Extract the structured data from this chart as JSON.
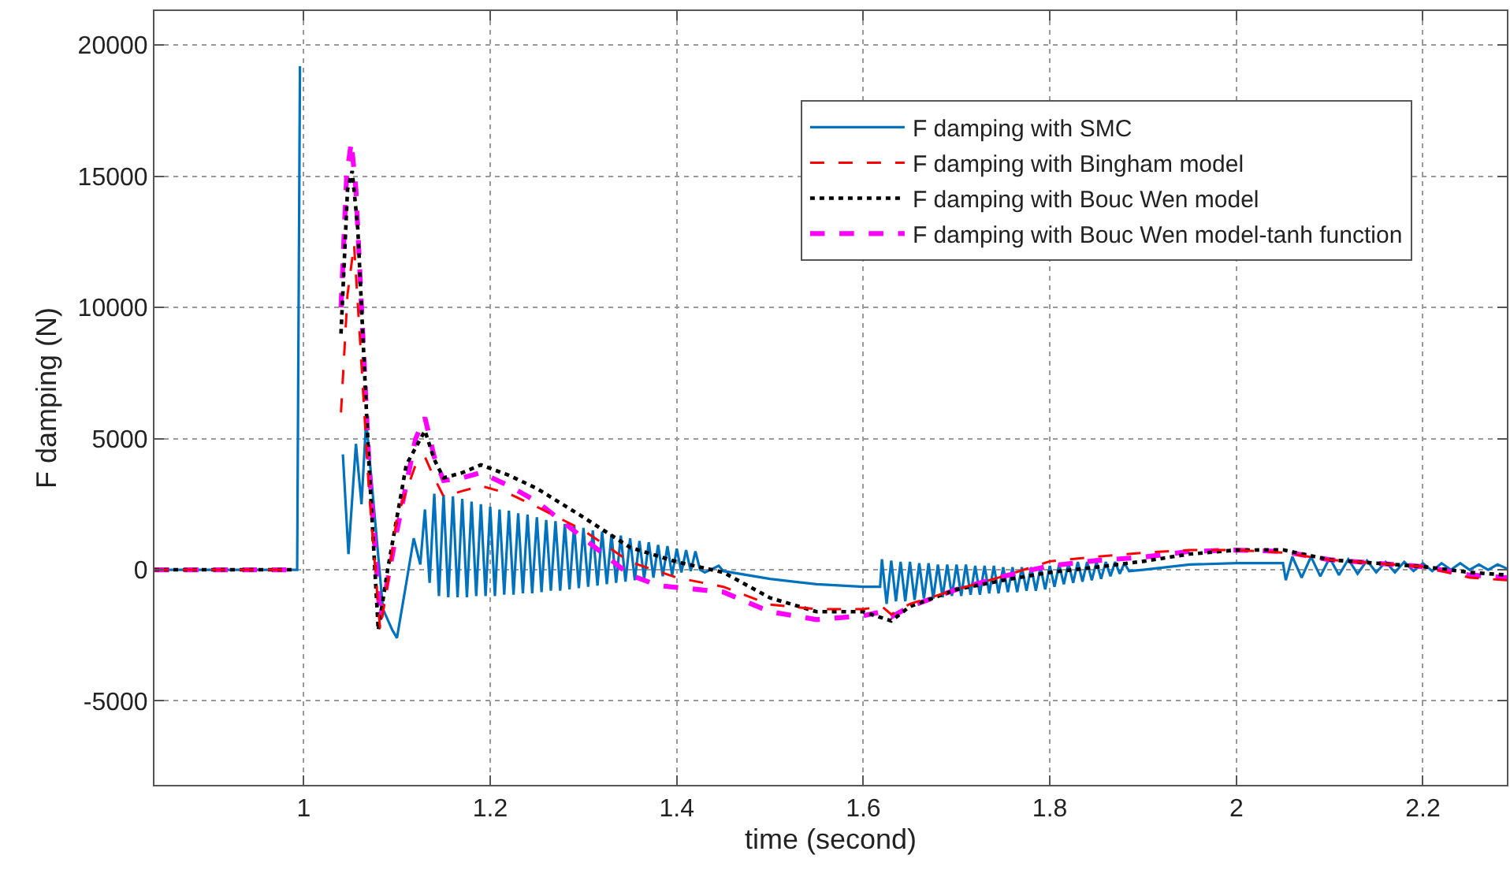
{
  "chart_data": {
    "type": "line",
    "xlabel": "time (second)",
    "ylabel": "F damping (N)",
    "xlim": [
      0.84,
      2.29
    ],
    "xticks": [
      1,
      1.2,
      1.4,
      1.6,
      1.8,
      2,
      2.2
    ],
    "ylim": [
      -8200,
      21300
    ],
    "yticks": [
      -5000,
      0,
      5000,
      10000,
      15000,
      20000
    ],
    "grid": true,
    "legend": "top right",
    "marker": "none",
    "series": [
      {
        "name": "F damping with SMC",
        "color": "#0072bd",
        "line_style": "solid",
        "x": [
          0.84,
          0.99,
          0.993,
          0.996,
          0.999,
          1.003,
          1.008,
          1.013,
          1.018,
          1.027,
          1.036,
          1.042,
          1.048,
          1.056,
          1.062,
          1.067,
          1.085,
          1.095,
          1.1,
          1.11,
          1.118,
          1.125,
          1.13,
          1.135,
          1.14,
          1.145,
          1.15,
          1.155,
          1.16,
          1.165,
          1.17,
          1.175,
          1.18,
          1.185,
          1.19,
          1.195,
          1.2,
          1.205,
          1.21,
          1.215,
          1.22,
          1.225,
          1.23,
          1.235,
          1.24,
          1.245,
          1.25,
          1.255,
          1.26,
          1.265,
          1.27,
          1.275,
          1.28,
          1.285,
          1.29,
          1.295,
          1.3,
          1.305,
          1.31,
          1.315,
          1.32,
          1.325,
          1.33,
          1.335,
          1.34,
          1.345,
          1.35,
          1.355,
          1.36,
          1.365,
          1.37,
          1.375,
          1.38,
          1.385,
          1.39,
          1.395,
          1.4,
          1.405,
          1.41,
          1.415,
          1.42,
          1.425,
          1.43,
          1.445,
          1.45,
          1.5,
          1.55,
          1.6,
          1.618,
          1.62,
          1.625,
          1.63,
          1.635,
          1.64,
          1.645,
          1.65,
          1.655,
          1.66,
          1.665,
          1.67,
          1.675,
          1.68,
          1.685,
          1.69,
          1.695,
          1.7,
          1.705,
          1.71,
          1.715,
          1.72,
          1.725,
          1.73,
          1.735,
          1.74,
          1.745,
          1.75,
          1.755,
          1.76,
          1.765,
          1.77,
          1.775,
          1.78,
          1.785,
          1.79,
          1.795,
          1.8,
          1.805,
          1.81,
          1.815,
          1.82,
          1.825,
          1.83,
          1.835,
          1.84,
          1.845,
          1.85,
          1.855,
          1.86,
          1.865,
          1.87,
          1.875,
          1.88,
          1.885,
          1.9,
          1.95,
          2.0,
          2.05,
          2.053,
          2.06,
          2.07,
          2.08,
          2.09,
          2.1,
          2.11,
          2.12,
          2.13,
          2.14,
          2.15,
          2.16,
          2.17,
          2.18,
          2.19,
          2.2,
          2.21,
          2.22,
          2.23,
          2.24,
          2.25,
          2.26,
          2.27,
          2.28,
          2.29
        ],
        "values": [
          0,
          0,
          0,
          19200,
          null,
          null,
          null,
          null,
          null,
          null,
          null,
          4400,
          600,
          4800,
          2500,
          5700,
          -1500,
          -2300,
          -2600,
          -500,
          1200,
          200,
          2300,
          -500,
          2900,
          -1000,
          2850,
          -1050,
          2800,
          -1050,
          2700,
          -1050,
          2600,
          -1000,
          2500,
          -1000,
          2400,
          -1000,
          2300,
          -950,
          2250,
          -950,
          2150,
          -900,
          2100,
          -900,
          2000,
          -850,
          1900,
          -800,
          1850,
          -800,
          1750,
          -750,
          1700,
          -700,
          1600,
          -650,
          1500,
          -600,
          1450,
          -550,
          1350,
          -500,
          1300,
          -450,
          1200,
          -400,
          1100,
          -350,
          1050,
          -300,
          950,
          -250,
          900,
          -200,
          800,
          -100,
          750,
          -50,
          700,
          0,
          -100,
          150,
          -50,
          -350,
          -550,
          -650,
          -650,
          400,
          -1300,
          350,
          -1200,
          300,
          -1200,
          300,
          -1150,
          250,
          -1100,
          250,
          -1100,
          200,
          -1050,
          200,
          -1000,
          200,
          -1000,
          200,
          -950,
          150,
          -950,
          150,
          -900,
          150,
          -900,
          100,
          -850,
          100,
          -850,
          100,
          -800,
          100,
          -800,
          100,
          -750,
          150,
          -650,
          200,
          -550,
          250,
          -500,
          300,
          -450,
          300,
          -400,
          300,
          -350,
          300,
          -250,
          300,
          -150,
          250,
          -50,
          0,
          200,
          250,
          250,
          -400,
          500,
          -300,
          500,
          -250,
          450,
          -200,
          400,
          -150,
          350,
          -100,
          300,
          -100,
          300,
          -50,
          250,
          -50,
          250,
          0,
          250,
          0,
          200,
          0,
          200,
          50
        ]
      },
      {
        "name": "F damping with Bingham model",
        "color": "#ff0000",
        "line_style": "dashed",
        "x": [
          0.84,
          0.99,
          0.995,
          1.01,
          1.03,
          1.04,
          1.047,
          1.054,
          1.06,
          1.07,
          1.082,
          1.09,
          1.1,
          1.12,
          1.13,
          1.14,
          1.15,
          1.17,
          1.19,
          1.22,
          1.25,
          1.3,
          1.35,
          1.4,
          1.45,
          1.5,
          1.55,
          1.6,
          1.62,
          1.63,
          1.65,
          1.7,
          1.75,
          1.8,
          1.85,
          1.9,
          1.95,
          2.0,
          2.05,
          2.1,
          2.15,
          2.2,
          2.25,
          2.29
        ],
        "values": [
          0,
          0,
          null,
          null,
          null,
          6000,
          10500,
          12400,
          9000,
          3000,
          -2300,
          -500,
          2000,
          4000,
          4300,
          3500,
          2800,
          3000,
          3200,
          2900,
          2400,
          1500,
          300,
          -300,
          -650,
          -1330,
          -1500,
          -1500,
          -1400,
          -1700,
          -1300,
          -750,
          -250,
          320,
          500,
          650,
          750,
          750,
          650,
          380,
          250,
          120,
          -300,
          -400
        ]
      },
      {
        "name": "F damping with Bouc Wen model",
        "color": "#000000",
        "line_style": "dotted",
        "x": [
          0.84,
          0.99,
          0.995,
          1.01,
          1.028,
          1.04,
          1.047,
          1.052,
          1.058,
          1.07,
          1.08,
          1.09,
          1.11,
          1.13,
          1.14,
          1.15,
          1.17,
          1.19,
          1.22,
          1.25,
          1.3,
          1.35,
          1.4,
          1.45,
          1.5,
          1.55,
          1.6,
          1.63,
          1.65,
          1.7,
          1.75,
          1.8,
          1.85,
          1.9,
          1.95,
          2.0,
          2.05,
          2.1,
          2.15,
          2.2,
          2.25,
          2.29
        ],
        "values": [
          0,
          0,
          null,
          null,
          null,
          9000,
          14500,
          15200,
          13000,
          4000,
          -2300,
          0,
          4000,
          5300,
          4200,
          3500,
          3700,
          4000,
          3600,
          3100,
          2000,
          850,
          300,
          -100,
          -1070,
          -1600,
          -1600,
          -1950,
          -1400,
          -750,
          -400,
          -100,
          100,
          320,
          600,
          750,
          760,
          380,
          250,
          120,
          -100,
          -200
        ]
      },
      {
        "name": "F damping with Bouc Wen model-tanh function",
        "color": "#ff00ff",
        "line_style": "dashed",
        "x": [
          0.84,
          0.99,
          0.995,
          1.01,
          1.03,
          1.04,
          1.046,
          1.051,
          1.056,
          1.07,
          1.082,
          1.1,
          1.12,
          1.13,
          1.14,
          1.15,
          1.17,
          1.19,
          1.22,
          1.25,
          1.3,
          1.35,
          1.38,
          1.45,
          1.5,
          1.55,
          1.6,
          1.62,
          1.63,
          1.65,
          1.7,
          1.75,
          1.8,
          1.85,
          1.9,
          1.95,
          2.0,
          2.05,
          2.1,
          2.15,
          2.2,
          2.25,
          2.29
        ],
        "values": [
          0,
          0,
          null,
          null,
          null,
          10000,
          15000,
          16300,
          14500,
          4000,
          -1900,
          1500,
          5000,
          5800,
          4300,
          3400,
          3500,
          3700,
          3200,
          2600,
          1200,
          -200,
          -600,
          -850,
          -1600,
          -1900,
          -1750,
          -1600,
          -1800,
          -1400,
          -750,
          -250,
          150,
          350,
          480,
          700,
          750,
          700,
          380,
          250,
          120,
          -200,
          -300
        ]
      }
    ]
  }
}
